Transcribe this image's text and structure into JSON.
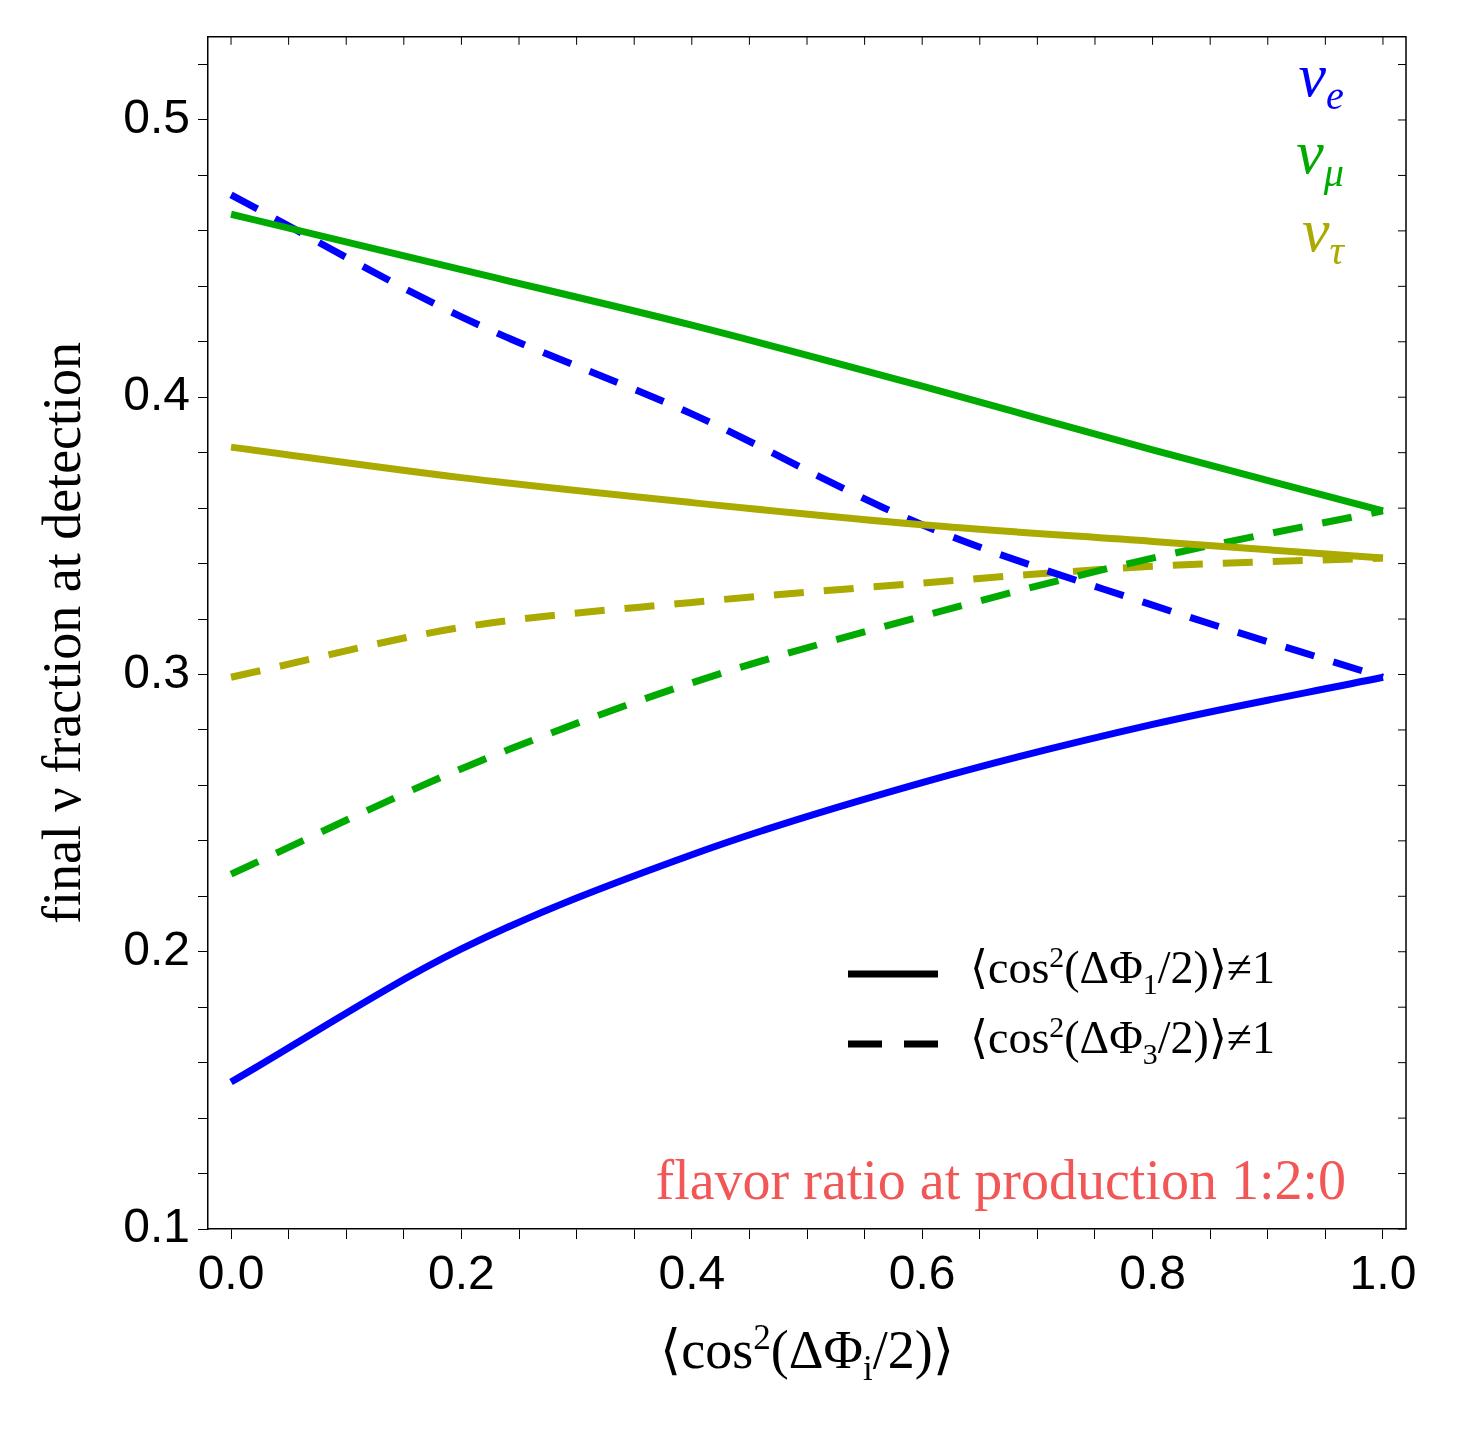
{
  "chart_data": {
    "type": "line",
    "xlabel": "⟨cos$^{2}$(ΔΦ$_{i}$/2)⟩",
    "ylabel": "final ν fraction at detection",
    "x": [
      0,
      0.2,
      0.4,
      0.6,
      0.8,
      1.0
    ],
    "series": [
      {
        "name": "ν$_{e}$",
        "color": "#0000ff",
        "line_style": "solid",
        "values": [
          0.153,
          0.201,
          0.235,
          0.261,
          0.282,
          0.299
        ]
      },
      {
        "name": "ν$_{μ}$",
        "color": "#00aa00",
        "line_style": "solid",
        "values": [
          0.466,
          0.446,
          0.426,
          0.404,
          0.381,
          0.359
        ]
      },
      {
        "name": "ν$_{τ}$",
        "color": "#aaaa00",
        "line_style": "solid",
        "values": [
          0.382,
          0.371,
          0.362,
          0.354,
          0.348,
          0.342
        ]
      },
      {
        "color": "#0000ff",
        "line_style": "dashed",
        "values": [
          0.473,
          0.429,
          0.394,
          0.354,
          0.325,
          0.299
        ]
      },
      {
        "color": "#00aa00",
        "line_style": "dashed",
        "values": [
          0.228,
          0.266,
          0.297,
          0.321,
          0.342,
          0.359
        ]
      },
      {
        "color": "#aaaa00",
        "line_style": "dashed",
        "values": [
          0.299,
          0.317,
          0.326,
          0.333,
          0.339,
          0.342
        ]
      }
    ],
    "xlim": [
      -0.02,
      1.02
    ],
    "ylim": [
      0.1,
      0.53
    ],
    "xticks": [
      {
        "value": 0,
        "label": "0.0"
      },
      {
        "value": 0.05,
        "label": null
      },
      {
        "value": 0.1,
        "label": null
      },
      {
        "value": 0.15,
        "label": null
      },
      0.2,
      {
        "value": 0.25,
        "label": null
      },
      {
        "value": 0.3,
        "label": null
      },
      {
        "value": 0.35,
        "label": null
      },
      0.4,
      {
        "value": 0.45,
        "label": null
      },
      {
        "value": 0.5,
        "label": null
      },
      {
        "value": 0.55,
        "label": null
      },
      0.6,
      {
        "value": 0.65,
        "label": null
      },
      {
        "value": 0.7,
        "label": null
      },
      {
        "value": 0.75,
        "label": null
      },
      0.8,
      {
        "value": 0.85,
        "label": null
      },
      {
        "value": 0.9,
        "label": null
      },
      {
        "value": 0.95,
        "label": null
      },
      {
        "value": 1.0,
        "label": "1.0"
      }
    ],
    "yticks": [
      0.1,
      {
        "value": 0.12,
        "label": null
      },
      {
        "value": 0.14,
        "label": null
      },
      {
        "value": 0.16,
        "label": null
      },
      {
        "value": 0.18,
        "label": null
      },
      0.2,
      {
        "value": 0.22,
        "label": null
      },
      {
        "value": 0.24,
        "label": null
      },
      {
        "value": 0.26,
        "label": null
      },
      {
        "value": 0.28,
        "label": null
      },
      0.3,
      {
        "value": 0.32,
        "label": null
      },
      {
        "value": 0.34,
        "label": null
      },
      {
        "value": 0.36,
        "label": null
      },
      {
        "value": 0.38,
        "label": null
      },
      0.4,
      {
        "value": 0.42,
        "label": null
      },
      {
        "value": 0.44,
        "label": null
      },
      {
        "value": 0.46,
        "label": null
      },
      {
        "value": 0.48,
        "label": null
      },
      0.5,
      {
        "value": 0.52,
        "label": null
      }
    ],
    "grid": false,
    "legend": "top right",
    "annotations": [
      "⟨cos$^{2}$(ΔΦ$_{1}$/2)⟩≠1",
      "⟨cos$^{2}$(ΔΦ$_{3}$/2)⟩≠1",
      "flavor ratio at production 1:2:0"
    ]
  }
}
